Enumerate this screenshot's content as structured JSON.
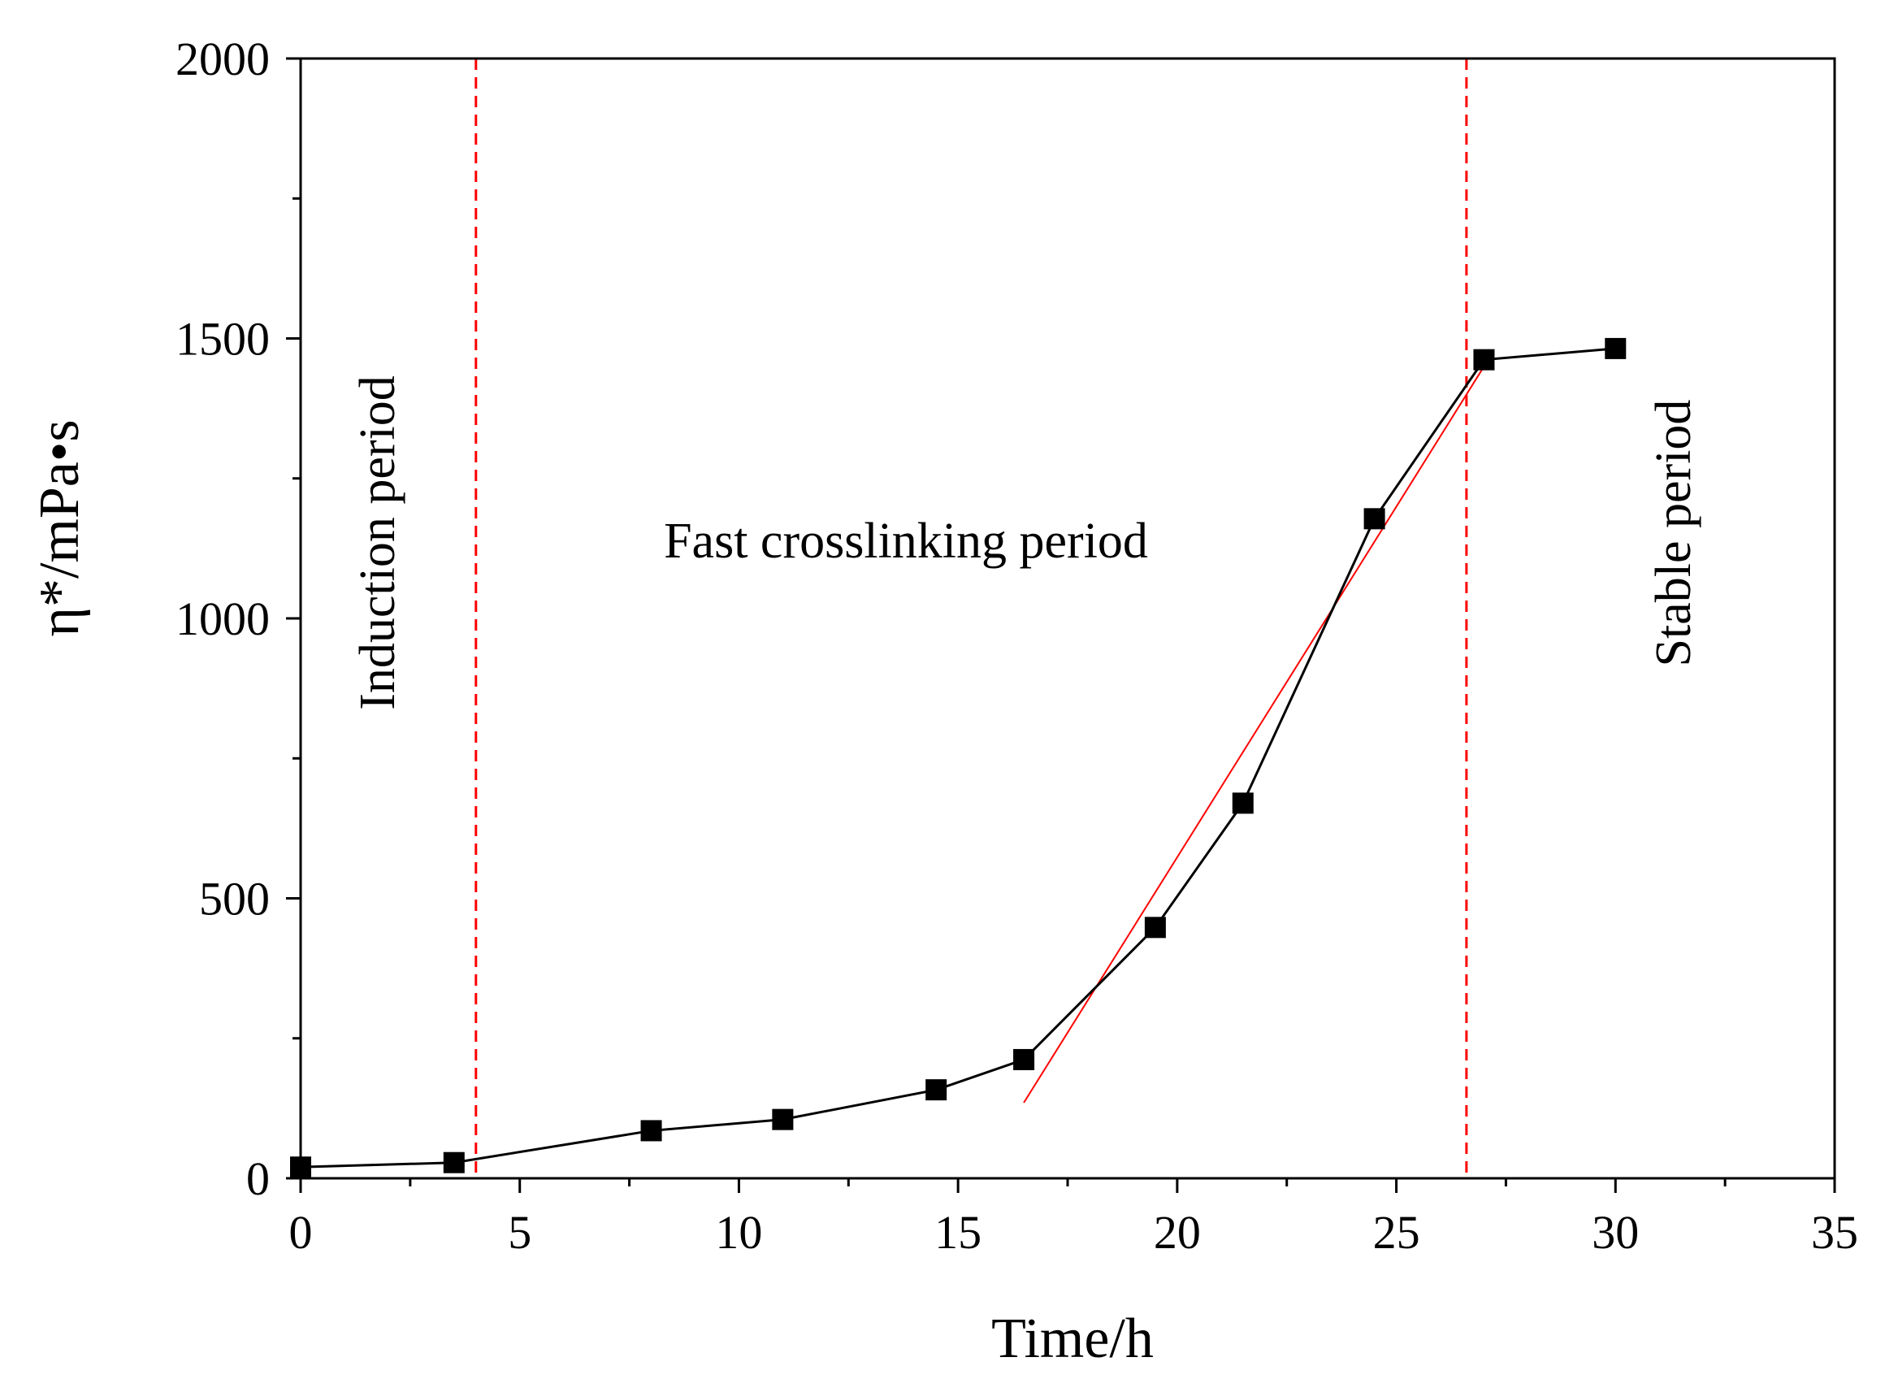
{
  "chart_data": {
    "type": "line",
    "title": "",
    "xlabel": "Time/h",
    "ylabel": "η*/mPa•s",
    "xlim": [
      0,
      35
    ],
    "ylim": [
      0,
      2000
    ],
    "x_ticks": [
      0,
      5,
      10,
      15,
      20,
      25,
      30,
      35
    ],
    "x_tick_labels": [
      "0",
      "5",
      "10",
      "15",
      "20",
      "25",
      "30",
      "35"
    ],
    "y_ticks": [
      0,
      500,
      1000,
      1500,
      2000
    ],
    "y_tick_labels": [
      "0",
      "500",
      "1000",
      "1500",
      "2000"
    ],
    "x_minor_step": 2.5,
    "y_minor_step": 250,
    "grid": false,
    "series": [
      {
        "name": "η*",
        "marker": "square",
        "color": "#000000",
        "x": [
          0,
          3.5,
          8,
          11,
          14.5,
          16.5,
          19.5,
          21.5,
          24.5,
          27,
          30
        ],
        "y": [
          20,
          28,
          85,
          105,
          158,
          212,
          448,
          670,
          1178,
          1462,
          1482
        ]
      }
    ],
    "fit_line": {
      "color": "#ff0000",
      "x": [
        16.5,
        27
      ],
      "y": [
        135,
        1450
      ]
    },
    "vertical_lines": [
      {
        "x": 4,
        "color": "#ff0000",
        "style": "dashed"
      },
      {
        "x": 26.6,
        "color": "#ff0000",
        "style": "dashed"
      }
    ],
    "annotations": [
      {
        "text": "Induction period",
        "orientation": "vertical"
      },
      {
        "text": "Fast crosslinking period",
        "orientation": "horizontal"
      },
      {
        "text": "Stable period",
        "orientation": "vertical"
      }
    ]
  }
}
